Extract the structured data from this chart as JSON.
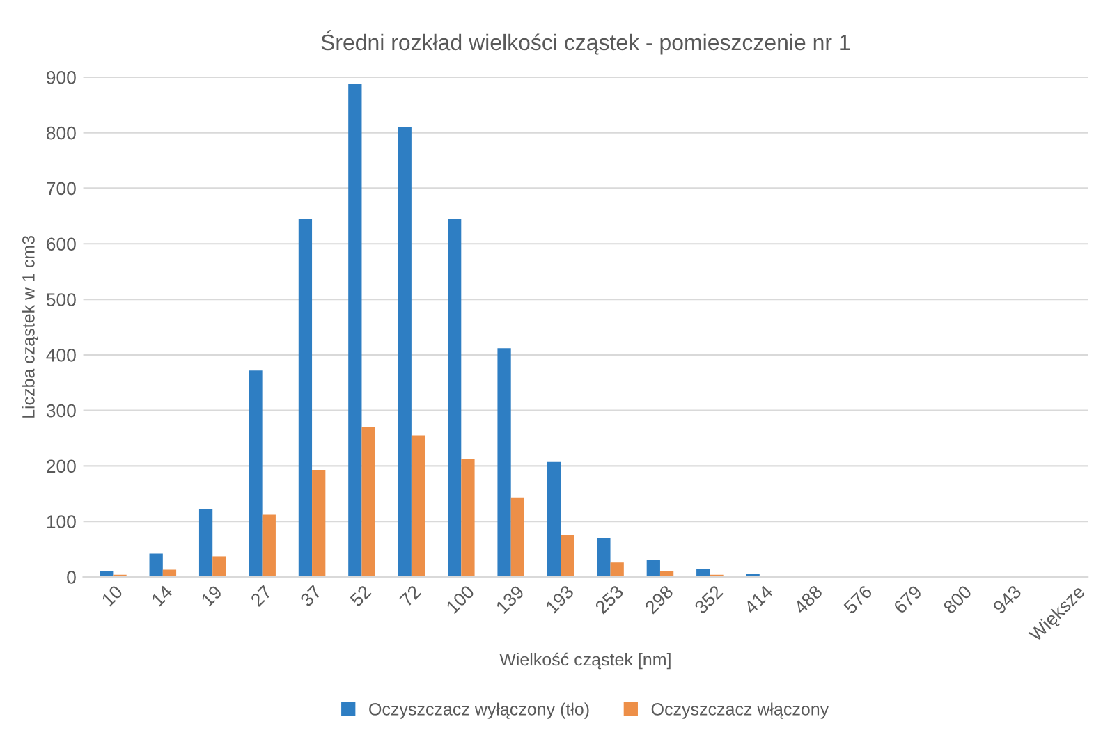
{
  "chart_data": {
    "type": "bar",
    "title": "Średni rozkład wielkości cząstek - pomieszczenie nr 1",
    "xlabel": "Wielkość cząstek [nm]",
    "ylabel": "Liczba cząstek w 1 cm3",
    "categories": [
      "10",
      "14",
      "19",
      "27",
      "37",
      "52",
      "72",
      "100",
      "139",
      "193",
      "253",
      "298",
      "352",
      "414",
      "488",
      "576",
      "679",
      "800",
      "943",
      "Większe"
    ],
    "series": [
      {
        "name": "Oczyszczacz wyłączony (tło)",
        "color": "#2e7ec3",
        "values": [
          10,
          42,
          122,
          372,
          645,
          888,
          810,
          645,
          412,
          207,
          70,
          30,
          14,
          5,
          2,
          0,
          0,
          0,
          0,
          0
        ]
      },
      {
        "name": "Oczyszczacz włączony",
        "color": "#ed8f48",
        "values": [
          4,
          13,
          37,
          112,
          193,
          270,
          255,
          213,
          143,
          75,
          26,
          10,
          4,
          0,
          0,
          0,
          0,
          0,
          0,
          0
        ]
      }
    ],
    "ylim": [
      0,
      900
    ],
    "yticks": [
      0,
      100,
      200,
      300,
      400,
      500,
      600,
      700,
      800,
      900
    ],
    "grid": "y",
    "legend": "bottom"
  }
}
